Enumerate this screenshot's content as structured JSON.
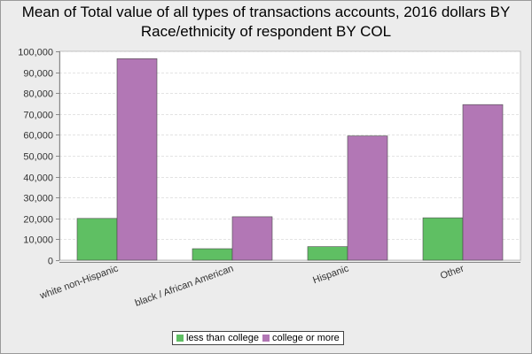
{
  "title_line1": "Mean of Total value of all types of transactions accounts, 2016 dollars BY",
  "title_line2": "Race/ethnicity of respondent BY COL",
  "chart_data": {
    "type": "bar",
    "title": "Mean of Total value of all types of transactions accounts, 2016 dollars BY Race/ethnicity of respondent BY COL",
    "categories": [
      "white non-Hispanic",
      "black / African American",
      "Hispanic",
      "Other"
    ],
    "series": [
      {
        "name": "less than college",
        "color": "#5fbf63",
        "values": [
          20000,
          5500,
          6500,
          20300
        ]
      },
      {
        "name": "college or more",
        "color": "#b277b5",
        "values": [
          96500,
          20800,
          59500,
          74500
        ]
      }
    ],
    "ylim": [
      0,
      100000
    ],
    "yticks": [
      0,
      10000,
      20000,
      30000,
      40000,
      50000,
      60000,
      70000,
      80000,
      90000,
      100000
    ],
    "ytick_labels": [
      "0",
      "10,000",
      "20,000",
      "30,000",
      "40,000",
      "50,000",
      "60,000",
      "70,000",
      "80,000",
      "90,000",
      "100,000"
    ],
    "grid": true,
    "legend": "bottom"
  }
}
